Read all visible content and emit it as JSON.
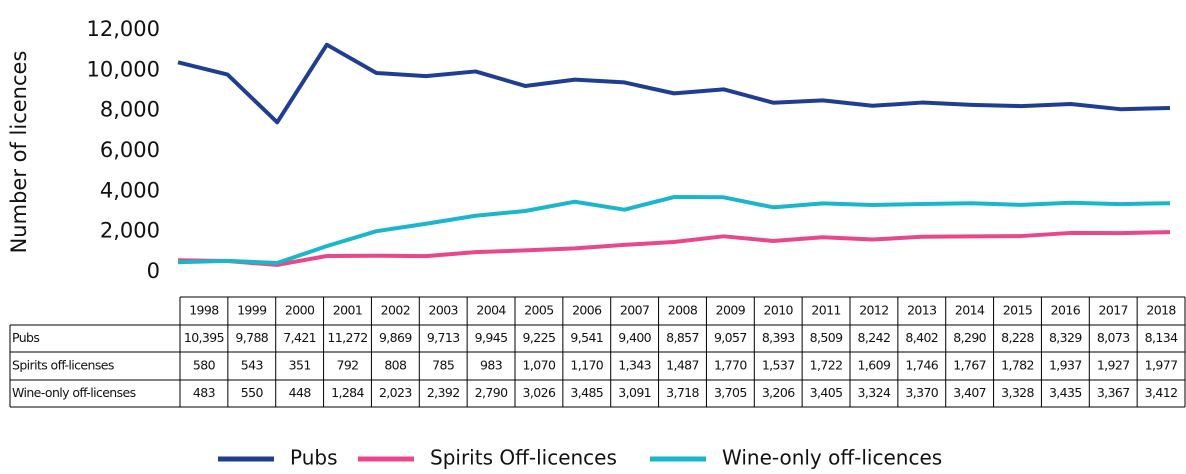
{
  "chart_data": {
    "type": "line",
    "y_label": "Number of licences",
    "categories": [
      "1998",
      "1999",
      "2000",
      "2001",
      "2002",
      "2003",
      "2004",
      "2005",
      "2006",
      "2007",
      "2008",
      "2009",
      "2010",
      "2011",
      "2012",
      "2013",
      "2014",
      "2015",
      "2016",
      "2017",
      "2018"
    ],
    "ylim": [
      0,
      12000
    ],
    "yticks": [
      0,
      {
        "value": 2000,
        "label": "2,000"
      },
      {
        "value": 4000,
        "label": "4,000"
      },
      {
        "value": 6000,
        "label": "6,000"
      },
      {
        "value": 8000,
        "label": "8,000"
      },
      {
        "value": 10000,
        "label": "10,000"
      },
      {
        "value": 12000,
        "label": "12,000"
      }
    ],
    "table_row_labels": [
      "Pubs",
      "Spirits off-licenses",
      "Wine-only off-licenses"
    ],
    "series": [
      {
        "name": "Pubs",
        "color": "#1f3e93",
        "values": [
          10395,
          9788,
          7421,
          11272,
          9869,
          9713,
          9945,
          9225,
          9541,
          9400,
          8857,
          9057,
          8393,
          8509,
          8242,
          8402,
          8290,
          8228,
          8329,
          8073,
          8134
        ],
        "value_labels": [
          "10,395",
          "9,788",
          "7,421",
          "11,272",
          "9,869",
          "9,713",
          "9,945",
          "9,225",
          "9,541",
          "9,400",
          "8,857",
          "9,057",
          "8,393",
          "8,509",
          "8,242",
          "8,402",
          "8,290",
          "8,228",
          "8,329",
          "8,073",
          "8,134"
        ]
      },
      {
        "name": "Spirits Off-licences",
        "color": "#e8488a",
        "values": [
          580,
          543,
          351,
          792,
          808,
          785,
          983,
          1070,
          1170,
          1343,
          1487,
          1770,
          1537,
          1722,
          1609,
          1746,
          1767,
          1782,
          1937,
          1927,
          1977
        ],
        "value_labels": [
          "580",
          "543",
          "351",
          "792",
          "808",
          "785",
          "983",
          "1,070",
          "1,170",
          "1,343",
          "1,487",
          "1,770",
          "1,537",
          "1,722",
          "1,609",
          "1,746",
          "1,767",
          "1,782",
          "1,937",
          "1,927",
          "1,977"
        ]
      },
      {
        "name": "Wine-only off-licences",
        "color": "#1ab6cc",
        "values": [
          483,
          550,
          448,
          1284,
          2023,
          2392,
          2790,
          3026,
          3485,
          3091,
          3718,
          3705,
          3206,
          3405,
          3324,
          3370,
          3407,
          3328,
          3435,
          3367,
          3412
        ],
        "value_labels": [
          "483",
          "550",
          "448",
          "1,284",
          "2,023",
          "2,392",
          "2,790",
          "3,026",
          "3,485",
          "3,091",
          "3,718",
          "3,705",
          "3,206",
          "3,405",
          "3,324",
          "3,370",
          "3,407",
          "3,328",
          "3,435",
          "3,367",
          "3,412"
        ]
      }
    ]
  }
}
